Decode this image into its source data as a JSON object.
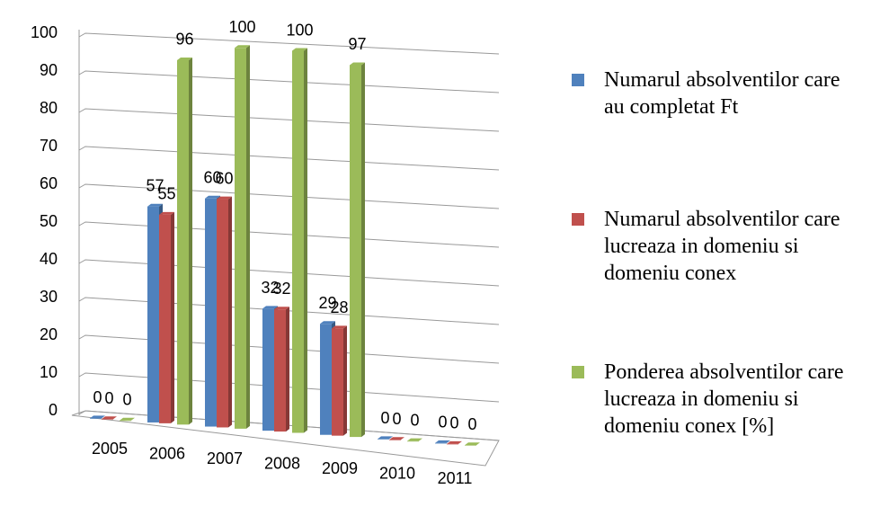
{
  "chart_data": {
    "type": "bar3d",
    "categories": [
      "2005",
      "2006",
      "2007",
      "2008",
      "2009",
      "2010",
      "2011"
    ],
    "series": [
      {
        "name": "Numarul absolventilor care au completat Ft",
        "color": "#4f81bd",
        "values": [
          0,
          57,
          60,
          32,
          29,
          0,
          0
        ]
      },
      {
        "name": "Numarul absolventilor care lucreaza in domeniu si domeniu conex",
        "color": "#c0504d",
        "values": [
          0,
          55,
          60,
          32,
          28,
          0,
          0
        ]
      },
      {
        "name": "Ponderea absolventilor care lucreaza in domeniu si domeniu conex [%]",
        "color": "#9bbb59",
        "values": [
          0,
          96,
          100,
          100,
          97,
          0,
          0
        ]
      }
    ],
    "ylim": [
      0,
      100
    ],
    "yticks": [
      0,
      10,
      20,
      30,
      40,
      50,
      60,
      70,
      80,
      90,
      100
    ],
    "grid": true,
    "legend": "right"
  }
}
